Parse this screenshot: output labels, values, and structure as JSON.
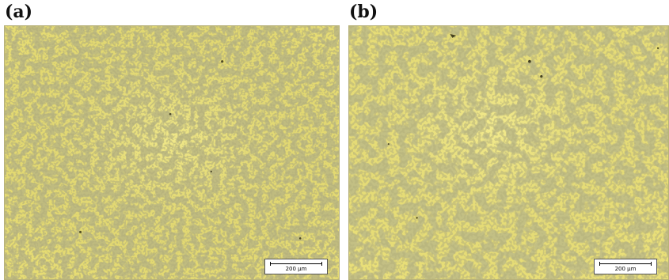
{
  "figure": {
    "panels": [
      {
        "label": "(a)",
        "scale_bar": "200 µm",
        "base_color": "#e6dc73",
        "network_color": "#7f7a3a"
      },
      {
        "label": "(b)",
        "scale_bar": "200 µm",
        "base_color": "#e9df78",
        "network_color": "#847f3e"
      }
    ]
  }
}
